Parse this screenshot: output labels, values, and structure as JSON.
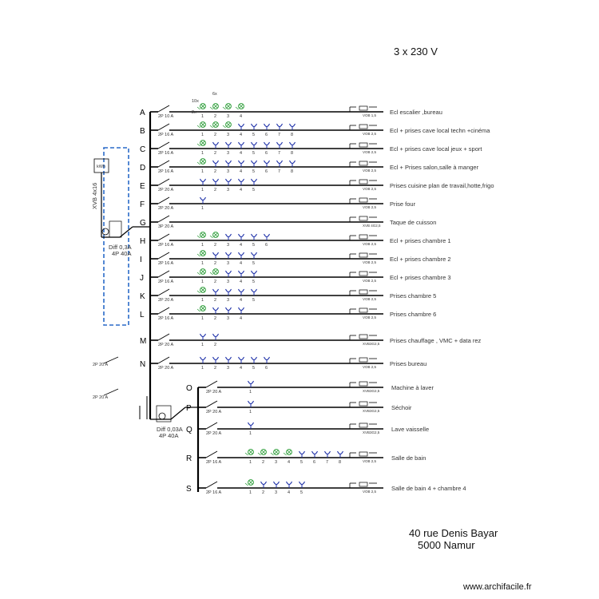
{
  "header": {
    "voltage": "3 x 230 V"
  },
  "address": {
    "line1": "40 rue Denis Bayar",
    "line2": "5000 Namur"
  },
  "watermark": "www.archifacile.fr",
  "main_feed": {
    "cable": "XVB 4x16",
    "breaker_label": "Diff 0,3A",
    "breaker_rating": "4P  40A"
  },
  "sub_feed": {
    "breaker_label": "Diff 0,03A",
    "breaker_rating": "4P  40A"
  },
  "circuits": [
    {
      "letter": "A",
      "breaker": "2P  10 A",
      "label": "Ecl  escalier ,bureau",
      "cable": "VOB 1,5",
      "lights": 4,
      "sockets": 0,
      "top_notes": [
        "10x",
        "6x"
      ]
    },
    {
      "letter": "B",
      "breaker": "2P  16 A",
      "label": "Ecl + prises cave local techn +cinéma",
      "cable": "VOB 2,5",
      "lights": 3,
      "sockets": 5,
      "top_notes": [
        "2x"
      ]
    },
    {
      "letter": "C",
      "breaker": "2P  16 A",
      "label": "Ecl + prises cave local jeux + sport",
      "cable": "VOB 2,5",
      "lights": 1,
      "sockets": 7,
      "top_notes": []
    },
    {
      "letter": "D",
      "breaker": "2P  16 A",
      "label": "Ecl + Prises salon,salle à manger",
      "cable": "VOB 2,5",
      "lights": 1,
      "sockets": 7,
      "top_notes": []
    },
    {
      "letter": "E",
      "breaker": "2P  20 A",
      "label": "Prises  cuisine plan de travail,hotte,frigo",
      "cable": "VOB 2,5",
      "lights": 0,
      "sockets": 5,
      "top_notes": []
    },
    {
      "letter": "F",
      "breaker": "2P  20 A",
      "label": "Prise  four",
      "cable": "VOB 2,5",
      "lights": 0,
      "sockets": 1,
      "top_notes": []
    },
    {
      "letter": "G",
      "breaker": "3P  20 A",
      "label": "Taque de cuisson",
      "cable": "XVB 4G2,5",
      "lights": 0,
      "sockets": 0,
      "top_notes": []
    },
    {
      "letter": "H",
      "breaker": "2P  16 A",
      "label": "Ecl + prises chambre 1",
      "cable": "VOB 2,5",
      "lights": 2,
      "sockets": 4,
      "top_notes": []
    },
    {
      "letter": "I",
      "breaker": "2P  16 A",
      "label": "Ecl + prises chambre 2",
      "cable": "VOB 2,5",
      "lights": 1,
      "sockets": 4,
      "top_notes": []
    },
    {
      "letter": "J",
      "breaker": "2P  16 A",
      "label": "Ecl + prises chambre 3",
      "cable": "VOB 2,5",
      "lights": 2,
      "sockets": 3,
      "top_notes": []
    },
    {
      "letter": "K",
      "breaker": "2P  20 A",
      "label": "Prises chambre 5",
      "cable": "VOB 2,5",
      "lights": 1,
      "sockets": 4,
      "top_notes": []
    },
    {
      "letter": "L",
      "breaker": "2P  16 A",
      "label": "Prises chambre 6",
      "cable": "VOB 2,5",
      "lights": 1,
      "sockets": 3,
      "top_notes": []
    },
    {
      "letter": "M",
      "breaker": "2P  20 A",
      "label": "Prises  chauffage , VMC + data rez",
      "cable": "XVB3G2,5",
      "lights": 0,
      "sockets": 2,
      "top_notes": []
    },
    {
      "letter": "N",
      "breaker": "2P  20 A",
      "label": "Prises bureau",
      "cable": "VOB 2,5",
      "lights": 0,
      "sockets": 6,
      "top_notes": []
    },
    {
      "letter": "O",
      "breaker": "2P  20 A",
      "label": "Machine à laver",
      "cable": "XVB3G2,5",
      "lights": 0,
      "sockets": 1,
      "top_notes": []
    },
    {
      "letter": "P",
      "breaker": "2P  20 A",
      "label": "Séchoir",
      "cable": "XVB3G2,5",
      "lights": 0,
      "sockets": 1,
      "top_notes": []
    },
    {
      "letter": "Q",
      "breaker": "2P  20 A",
      "label": "Lave vaisselle",
      "cable": "XVB3G2,5",
      "lights": 0,
      "sockets": 1,
      "top_notes": []
    },
    {
      "letter": "R",
      "breaker": "2P  16 A",
      "label": "Salle de bain",
      "cable": "VOB 2,5",
      "lights": 4,
      "sockets": 4,
      "top_notes": []
    },
    {
      "letter": "S",
      "breaker": "2P  16 A",
      "label": "Salle de bain 4 + chambre  4",
      "cable": "VOB 2,5",
      "lights": 1,
      "sockets": 4,
      "top_notes": []
    }
  ],
  "colors": {
    "line": "#000000",
    "light": "#2e9e3a",
    "socket": "#1c2fa8",
    "dashed_box": "#2a6ac8"
  }
}
